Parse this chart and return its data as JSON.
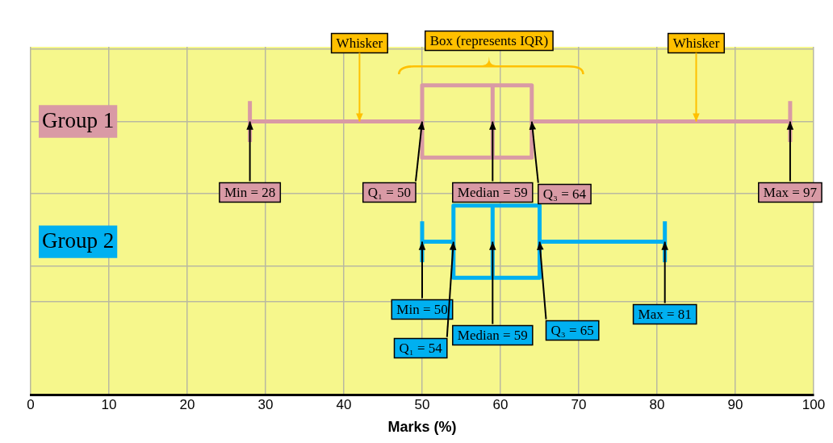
{
  "chart_data": {
    "type": "box",
    "orientation": "horizontal",
    "xlabel": "Marks (%)",
    "categories": [
      "Group 1",
      "Group 2"
    ],
    "colors": [
      "#d99aa5",
      "#00b0f0"
    ],
    "boxes": [
      {
        "low": 28,
        "q1": 50,
        "median": 59,
        "q3": 64,
        "high": 97
      },
      {
        "low": 50,
        "q1": 54,
        "median": 59,
        "q3": 65,
        "high": 81
      }
    ],
    "xlim": [
      0,
      100
    ],
    "xticks": [
      0,
      10,
      20,
      30,
      40,
      50,
      60,
      70,
      80,
      90,
      100
    ],
    "grid": true,
    "annotations": [
      {
        "text": "Whisker",
        "x": 42,
        "y": "Group 1"
      },
      "Box (represents IQR)",
      {
        "text": "Whisker",
        "x": 85,
        "y": "Group 1"
      },
      {
        "text": "Min = 28",
        "x": 28,
        "y": "Group 1"
      },
      {
        "text": "Q₁ = 50",
        "x": 50,
        "y": "Group 1"
      },
      {
        "text": "Median = 59",
        "x": 59,
        "y": "Group 1"
      },
      {
        "text": "Q₃ = 64",
        "x": 64,
        "y": "Group 1"
      },
      {
        "text": "Max = 97",
        "x": 97,
        "y": "Group 1"
      },
      {
        "text": "Min = 50",
        "x": 50,
        "y": "Group 2"
      },
      {
        "text": "Q₁ = 54",
        "x": 54,
        "y": "Group 2"
      },
      {
        "text": "Median = 59",
        "x": 59,
        "y": "Group 2"
      },
      {
        "text": "Q₃ = 65",
        "x": 65,
        "y": "Group 2"
      },
      {
        "text": "Max = 81",
        "x": 81,
        "y": "Group 2"
      }
    ]
  }
}
